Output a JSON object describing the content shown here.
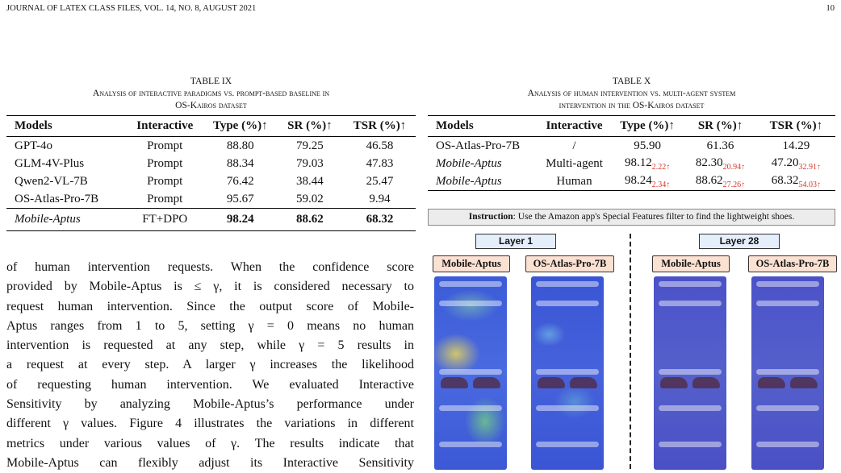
{
  "header": {
    "journal": "JOURNAL OF LATEX CLASS FILES, VOL. 14, NO. 8, AUGUST 2021",
    "page": "10"
  },
  "table_ix": {
    "label": "TABLE IX",
    "caption": [
      "Analysis of interactive paradigms vs. prompt-based baseline in",
      "OS-Kairos dataset"
    ],
    "columns": [
      "Models",
      "Interactive",
      "Type (%)↑",
      "SR (%)↑",
      "TSR (%)↑"
    ],
    "rows": [
      [
        {
          "text": "GPT-4o"
        },
        {
          "text": "Prompt"
        },
        {
          "text": "88.80"
        },
        {
          "text": "79.25"
        },
        {
          "text": "46.58"
        }
      ],
      [
        {
          "text": "GLM-4V-Plus"
        },
        {
          "text": "Prompt"
        },
        {
          "text": "88.34"
        },
        {
          "text": "79.03"
        },
        {
          "text": "47.83"
        }
      ],
      [
        {
          "text": "Qwen2-VL-7B"
        },
        {
          "text": "Prompt"
        },
        {
          "text": "76.42"
        },
        {
          "text": "38.44"
        },
        {
          "text": "25.47"
        }
      ],
      [
        {
          "text": "OS-Atlas-Pro-7B"
        },
        {
          "text": "Prompt"
        },
        {
          "text": "95.67"
        },
        {
          "text": "59.02"
        },
        {
          "text": "9.94"
        }
      ],
      [
        {
          "text": "Mobile-Aptus"
        },
        {
          "text": "FT+DPO"
        },
        {
          "text": "98.24"
        },
        {
          "text": "88.62"
        },
        {
          "text": "68.32"
        }
      ]
    ]
  },
  "table_x": {
    "label": "TABLE X",
    "caption": [
      "Analysis of human intervention vs. multi-agent system",
      "intervention in the OS-Kairos dataset"
    ],
    "columns": [
      "Models",
      "Interactive",
      "Type (%)↑",
      "SR (%)↑",
      "TSR (%)↑"
    ],
    "rows": [
      [
        {
          "text": "OS-Atlas-Pro-7B"
        },
        {
          "text": "/"
        },
        {
          "text": "95.90"
        },
        {
          "text": "61.36"
        },
        {
          "text": "14.29"
        }
      ],
      [
        {
          "text": "Mobile-Aptus"
        },
        {
          "text": "Multi-agent"
        },
        {
          "text": "98.12",
          "sub": "2.22↑"
        },
        {
          "text": "82.30",
          "sub": "20.94↑"
        },
        {
          "text": "47.20",
          "sub": "32.91↑"
        }
      ],
      [
        {
          "text": "Mobile-Aptus"
        },
        {
          "text": "Human"
        },
        {
          "text": "98.24",
          "sub": "2.34↑"
        },
        {
          "text": "88.62",
          "sub": "27.26↑"
        },
        {
          "text": "68.32",
          "sub": "54.03↑"
        }
      ]
    ]
  },
  "body": [
    "of human intervention requests. When the confidence score",
    "provided by Mobile-Aptus is ≤ γ, it is considered necessary to",
    "request human intervention. Since the output score of Mobile-",
    "Aptus ranges from 1 to 5, setting γ = 0 means no human",
    "intervention is requested at any step, while γ = 5 results in",
    "a request at every step. A larger γ increases the likelihood",
    "of requesting human intervention. We evaluated Interactive",
    "Sensitivity by analyzing Mobile-Aptus’s performance under",
    "different γ values. Figure 4 illustrates the variations in different",
    "metrics under various values of γ. The results indicate that",
    "Mobile-Aptus can flexibly adjust its Interactive Sensitivity"
  ],
  "figure": {
    "instruction": {
      "label": "Instruction",
      "text": ": Use the Amazon app's Special Features filter to find the lightweight shoes."
    },
    "layers": [
      "Layer 1",
      "Layer 28"
    ],
    "models": [
      "Mobile-Aptus",
      "OS-Atlas-Pro-7B",
      "Mobile-Aptus",
      "OS-Atlas-Pro-7B"
    ]
  }
}
